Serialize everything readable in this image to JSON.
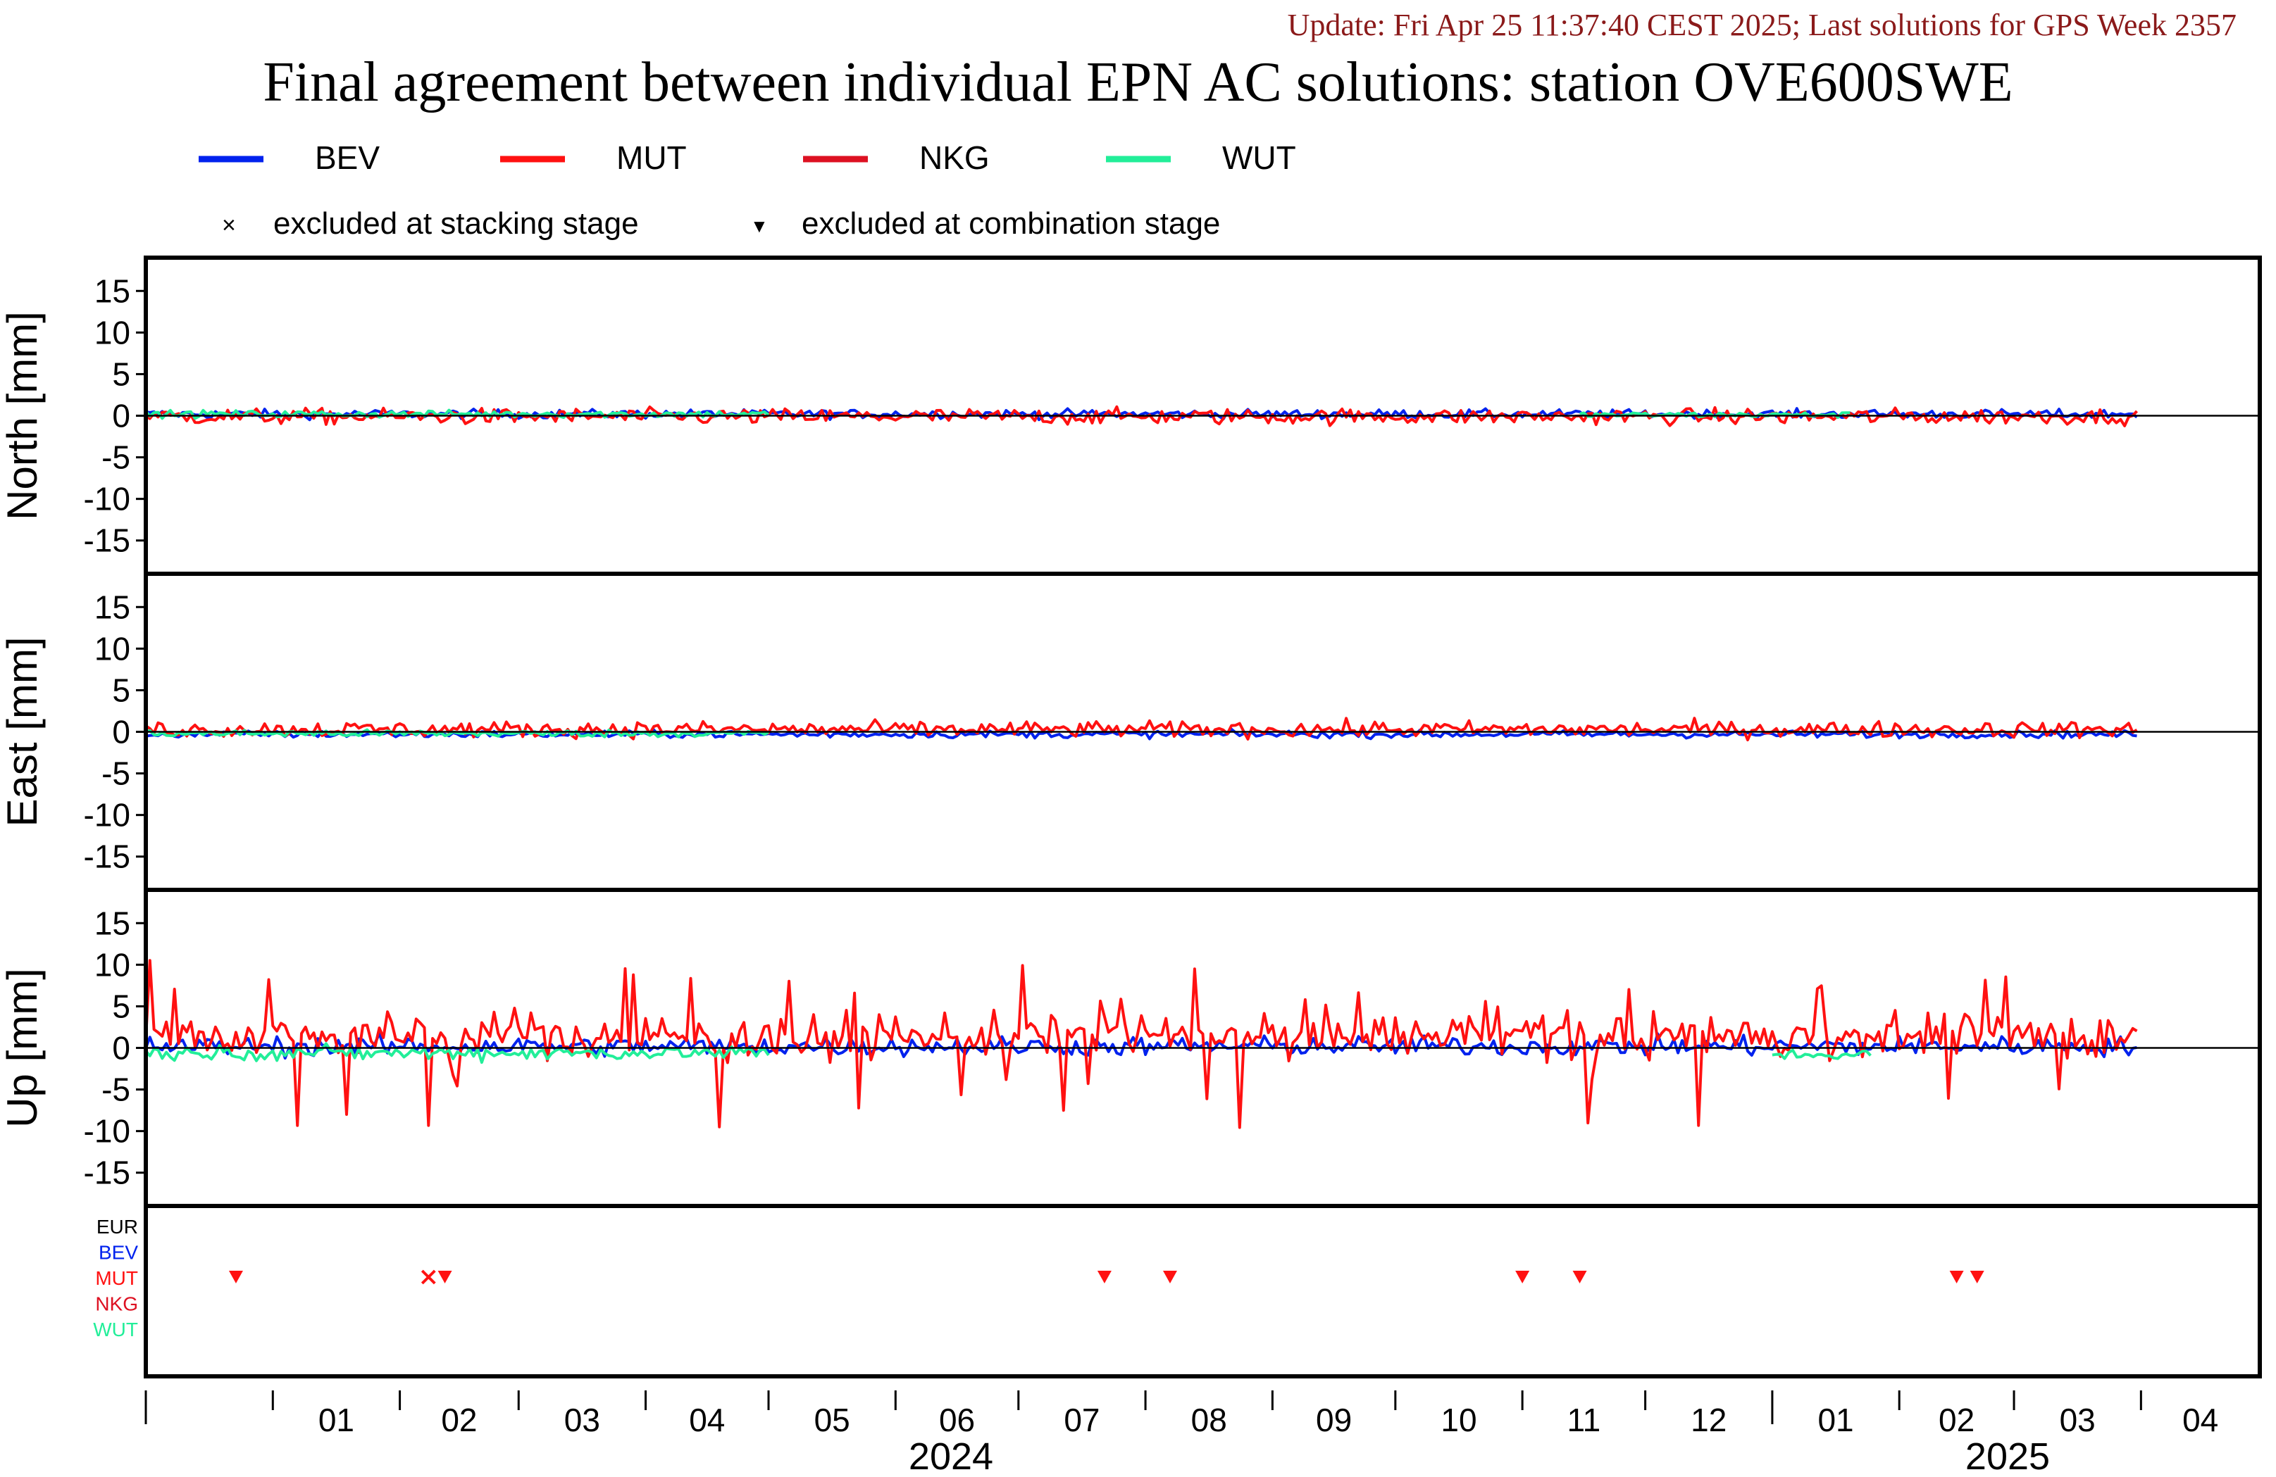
{
  "update": "Update: Fri Apr 25 11:37:40 CEST 2025; Last solutions for GPS Week 2357",
  "title": "Final agreement between individual EPN AC solutions: station OVE600SWE",
  "legend": {
    "series": [
      {
        "name": "BEV",
        "color": "#0022ee"
      },
      {
        "name": "MUT",
        "color": "#ff1111"
      },
      {
        "name": "NKG",
        "color": "#dd1122"
      },
      {
        "name": "WUT",
        "color": "#22ee99"
      }
    ],
    "markers": [
      {
        "symbol": "×",
        "label": "excluded at stacking stage"
      },
      {
        "symbol": "▼",
        "label": "excluded at combination stage"
      }
    ]
  },
  "chart_data": {
    "type": "line",
    "x_axis": {
      "start": "2023-12-01",
      "end": "2025-04-30",
      "months": [
        "01",
        "02",
        "03",
        "04",
        "05",
        "06",
        "07",
        "08",
        "09",
        "10",
        "11",
        "12",
        "01",
        "02",
        "03",
        "04"
      ],
      "years": [
        "2024",
        "2025"
      ]
    },
    "panels": [
      {
        "name": "north",
        "ylabel": "North [mm]",
        "ylim": [
          -19,
          19
        ],
        "ticks": [
          15,
          10,
          5,
          0,
          -5,
          -10,
          -15
        ],
        "series": [
          {
            "name": "BEV",
            "color": "#0022ee",
            "start": "2023-12-01",
            "end": "2025-03-31",
            "mean": 0.2,
            "noise": 0.5
          },
          {
            "name": "MUT",
            "color": "#ff1111",
            "start": "2023-12-01",
            "end": "2025-03-31",
            "mean": -0.1,
            "noise": 0.9
          },
          {
            "name": "WUT",
            "color": "#22ee99",
            "start": "2023-12-01",
            "end": "2024-05-01",
            "mean": 0.2,
            "noise": 0.4
          },
          {
            "name": "WUT",
            "color": "#22ee99",
            "start": "2024-11-15",
            "end": "2025-01-20",
            "mean": 0.1,
            "noise": 0.3
          }
        ]
      },
      {
        "name": "east",
        "ylabel": "East [mm]",
        "ylim": [
          -19,
          19
        ],
        "ticks": [
          15,
          10,
          5,
          0,
          -5,
          -10,
          -15
        ],
        "series": [
          {
            "name": "BEV",
            "color": "#0022ee",
            "start": "2023-12-01",
            "end": "2025-03-31",
            "mean": -0.3,
            "noise": 0.4
          },
          {
            "name": "MUT",
            "color": "#ff1111",
            "start": "2023-12-01",
            "end": "2025-03-31",
            "mean": 0.3,
            "noise": 0.9
          },
          {
            "name": "WUT",
            "color": "#22ee99",
            "start": "2023-12-01",
            "end": "2024-05-01",
            "mean": -0.2,
            "noise": 0.4
          }
        ]
      },
      {
        "name": "up",
        "ylabel": "Up [mm]",
        "ylim": [
          -19,
          19
        ],
        "ticks": [
          15,
          10,
          5,
          0,
          -5,
          -10,
          -15
        ],
        "series": [
          {
            "name": "BEV",
            "color": "#0022ee",
            "start": "2023-12-01",
            "end": "2025-03-31",
            "mean": 0.2,
            "noise": 1.1
          },
          {
            "name": "MUT",
            "color": "#ff1111",
            "start": "2023-12-01",
            "end": "2025-03-31",
            "mean": 1.5,
            "noise": 2.6
          },
          {
            "name": "WUT",
            "color": "#22ee99",
            "start": "2023-12-01",
            "end": "2024-05-01",
            "mean": -0.6,
            "noise": 0.8
          },
          {
            "name": "WUT",
            "color": "#22ee99",
            "start": "2025-01-01",
            "end": "2025-01-25",
            "mean": -0.8,
            "noise": 0.6
          }
        ]
      }
    ],
    "exclusions": {
      "rows": [
        {
          "name": "EUR",
          "color": "#000000"
        },
        {
          "name": "BEV",
          "color": "#0022ee"
        },
        {
          "name": "MUT",
          "color": "#ff1111"
        },
        {
          "name": "NKG",
          "color": "#dd1122"
        },
        {
          "name": "WUT",
          "color": "#22ee99"
        }
      ],
      "events": [
        {
          "row": "MUT",
          "date": "2023-12-23",
          "type": "combination"
        },
        {
          "row": "MUT",
          "date": "2024-02-08",
          "type": "stacking"
        },
        {
          "row": "MUT",
          "date": "2024-02-12",
          "type": "combination"
        },
        {
          "row": "MUT",
          "date": "2024-07-22",
          "type": "combination"
        },
        {
          "row": "MUT",
          "date": "2024-08-07",
          "type": "combination"
        },
        {
          "row": "MUT",
          "date": "2024-11-01",
          "type": "combination"
        },
        {
          "row": "MUT",
          "date": "2024-11-15",
          "type": "combination"
        },
        {
          "row": "MUT",
          "date": "2025-02-15",
          "type": "combination"
        },
        {
          "row": "MUT",
          "date": "2025-02-20",
          "type": "combination"
        }
      ]
    }
  }
}
